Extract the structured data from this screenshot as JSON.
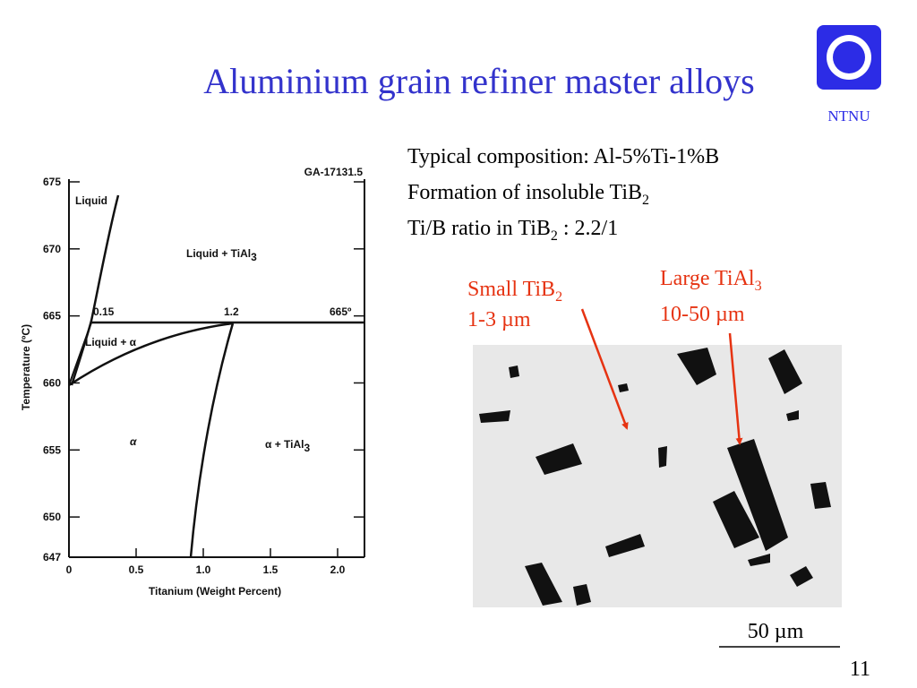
{
  "title": "Aluminium grain refiner master alloys",
  "logo": {
    "label": "NTNU"
  },
  "bullets": [
    {
      "text": "Typical composition: Al-5%Ti-1%B"
    },
    {
      "text": "Formation of insoluble TiB",
      "sub": "2"
    },
    {
      "text": "Ti/B ratio in TiB",
      "sub": "2",
      "tail": " : 2.2/1"
    }
  ],
  "phase_diagram": {
    "figure_code": "GA-17131.5",
    "xlabel": "Titanium (Weight Percent)",
    "ylabel": "Temperature (ºC)",
    "xlim": [
      0,
      2.2
    ],
    "ylim": [
      647,
      675
    ],
    "xticks": [
      0,
      0.5,
      {
        "value": 1,
        "label": "1.0"
      },
      1.5,
      {
        "value": 2,
        "label": "2.0"
      }
    ],
    "yticks": [
      647,
      650,
      655,
      660,
      665,
      670,
      675
    ],
    "regions": [
      {
        "text": "Liquid"
      },
      {
        "text": "Liquid + TiAl",
        "sub": "3"
      },
      {
        "text": "Liquid + α"
      },
      {
        "text": "α"
      },
      {
        "text": "α + TiAl",
        "sub": "3"
      }
    ],
    "annotations": [
      "0.15",
      "1.2",
      "665º"
    ]
  },
  "micrograph": {
    "labels": [
      {
        "text": "Small TiB",
        "sub": "2",
        "size": "1-3 µm"
      },
      {
        "text": "Large TiAl",
        "sub": "3",
        "size": "10-50 µm"
      }
    ],
    "scale_bar": "50 µm"
  },
  "page_number": "11"
}
